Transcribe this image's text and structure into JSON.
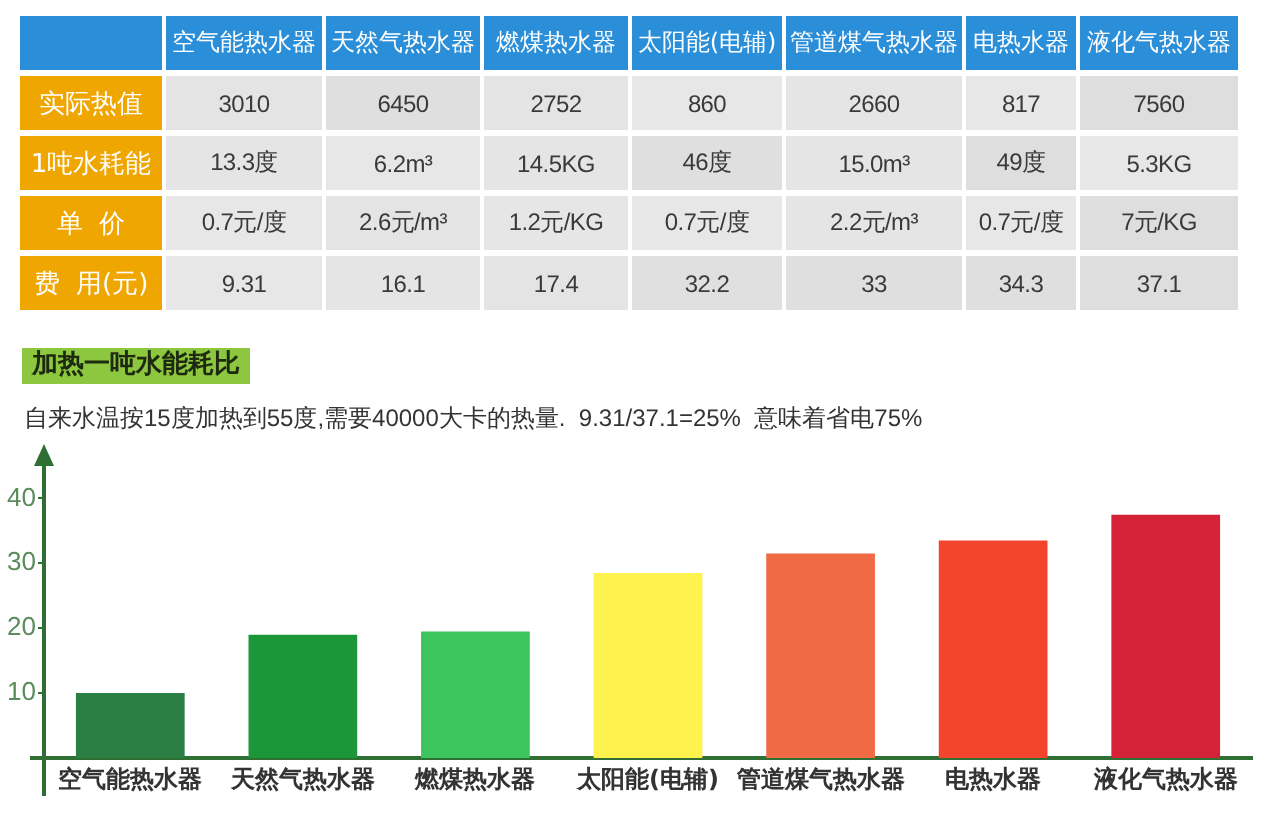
{
  "chart_data": [
    {
      "type": "heatmap",
      "categories": [
        "空气能热水器",
        "天然气热水器",
        "燃煤热水器",
        "太阳能(电辅)",
        "管道煤气热水器",
        "电热水器",
        "液化气热水器"
      ],
      "y_categories": [
        "实际热值",
        "1吨水耗能",
        "单 价",
        "费 用(元)"
      ],
      "cells": [
        [
          3010,
          6450,
          2752,
          860,
          2660,
          817,
          7560
        ],
        [
          13.3,
          6.2,
          14.5,
          46,
          15.0,
          49,
          5.3
        ],
        [
          0.7,
          2.6,
          1.2,
          0.7,
          2.2,
          0.7,
          7
        ],
        [
          9.31,
          16.1,
          17.4,
          32.2,
          33,
          34.3,
          37.1
        ]
      ],
      "cell_labels": [
        [
          "3010",
          "6450",
          "2752",
          "860",
          "2660",
          "817",
          "7560"
        ],
        [
          "13.3度",
          "6.2m³",
          "14.5KG",
          "46度",
          "15.0m³",
          "49度",
          "5.3KG"
        ],
        [
          "0.7元/度",
          "2.6元/m³",
          "1.2元/KG",
          "0.7元/度",
          "2.2元/m³",
          "0.7元/度",
          "7元/KG"
        ],
        [
          "9.31",
          "16.1",
          "17.4",
          "32.2",
          "33",
          "34.3",
          "37.1"
        ]
      ]
    },
    {
      "type": "bar",
      "title": "加热一吨水能耗比",
      "subtitle": "自来水温按15度加热到55度,需要40000大卡的热量.  9.31/37.1=25%  意味着省电75%",
      "categories": [
        "空气能热水器",
        "天然气热水器",
        "燃煤热水器",
        "太阳能(电辅)",
        "管道煤气热水器",
        "电热水器",
        "液化气热水器"
      ],
      "values": [
        10,
        19,
        19.5,
        28.5,
        31.5,
        33.5,
        37.5
      ],
      "colors": [
        "#2b7f45",
        "#1b973a",
        "#3cc55c",
        "#fdf24e",
        "#f06a45",
        "#f4452c",
        "#d42237"
      ],
      "ylim": [
        0,
        45
      ],
      "yticks": [
        10,
        20,
        30,
        40
      ]
    }
  ]
}
